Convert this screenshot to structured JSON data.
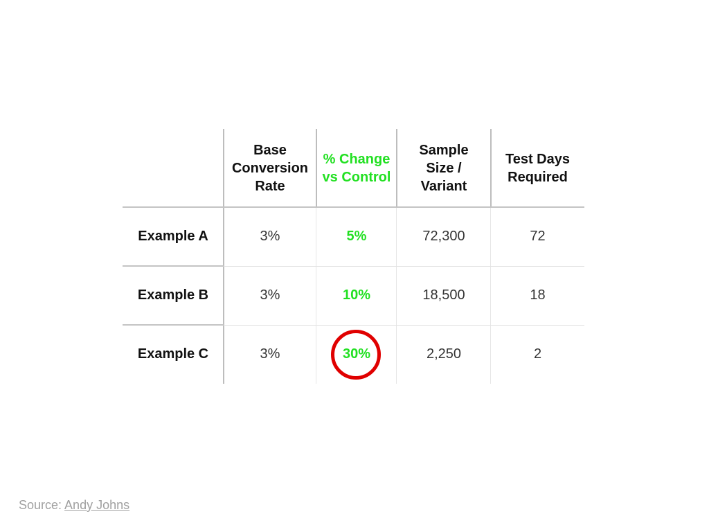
{
  "chart_data": {
    "type": "table",
    "columns": [
      "",
      "Base\nConversion\nRate",
      "% Change\nvs Control",
      "Sample\nSize /\nVariant",
      "Test Days\nRequired"
    ],
    "rows": [
      {
        "label": "Example A",
        "values": [
          "3%",
          "5%",
          "72,300",
          "72"
        ]
      },
      {
        "label": "Example B",
        "values": [
          "3%",
          "10%",
          "18,500",
          "18"
        ]
      },
      {
        "label": "Example C",
        "values": [
          "3%",
          "30%",
          "2,250",
          "2"
        ]
      }
    ],
    "highlight_column": 1,
    "highlight_color": "#22e022",
    "circled_cell": {
      "row": 2,
      "column": 1
    },
    "circle_color": "#e00000"
  },
  "source": {
    "prefix": "Source: ",
    "link_text": "Andy Johns"
  }
}
